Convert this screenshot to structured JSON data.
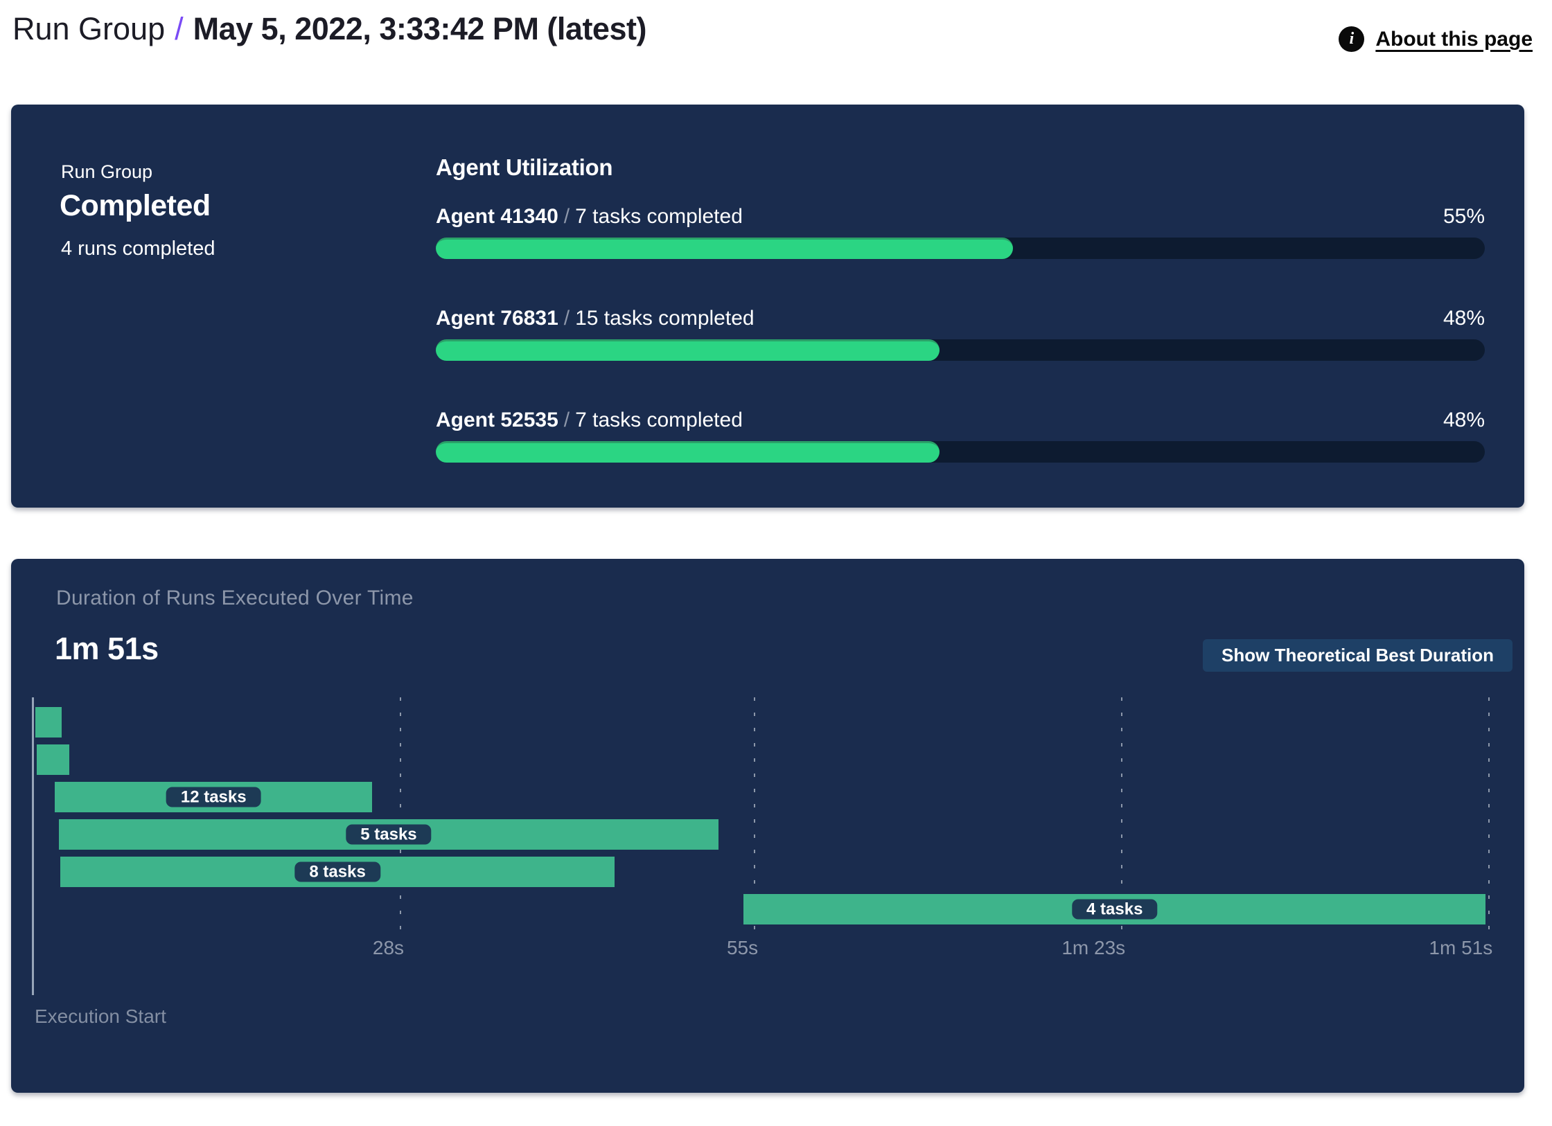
{
  "header": {
    "breadcrumb_root": "Run Group",
    "separator": "/",
    "title": "May 5, 2022, 3:33:42 PM (latest)",
    "about_link": "About this page",
    "info_icon_glyph": "i"
  },
  "summary": {
    "label": "Run Group",
    "status": "Completed",
    "detail": "4 runs completed"
  },
  "agent_utilization": {
    "title": "Agent Utilization",
    "separator": "/",
    "rows": [
      {
        "agent": "Agent 41340",
        "tasks_text": "7 tasks completed",
        "percent": 55,
        "percent_label": "55%"
      },
      {
        "agent": "Agent 76831",
        "tasks_text": "15 tasks completed",
        "percent": 48,
        "percent_label": "48%"
      },
      {
        "agent": "Agent 52535",
        "tasks_text": "7 tasks completed",
        "percent": 48,
        "percent_label": "48%"
      }
    ]
  },
  "duration_panel": {
    "button_label": "Show Theoretical Best Duration"
  },
  "chart_data": {
    "type": "gantt",
    "title": "Duration of Runs Executed Over Time",
    "total_label": "1m 51s",
    "x_unit": "seconds",
    "x_range": [
      0,
      111
    ],
    "x_ticks": [
      {
        "t": 28,
        "label": "28s"
      },
      {
        "t": 55,
        "label": "55s"
      },
      {
        "t": 83,
        "label": "1m 23s"
      },
      {
        "t": 111,
        "label": "1m 51s"
      }
    ],
    "x_axis_start_label": "Execution Start",
    "bars": [
      {
        "start": 0.2,
        "end": 2.2,
        "label": ""
      },
      {
        "start": 0.3,
        "end": 2.8,
        "label": ""
      },
      {
        "start": 1.7,
        "end": 25.9,
        "label": "12 tasks"
      },
      {
        "start": 2.0,
        "end": 52.3,
        "label": "5 tasks"
      },
      {
        "start": 2.1,
        "end": 44.4,
        "label": "8 tasks"
      },
      {
        "start": 54.2,
        "end": 110.8,
        "label": "4 tasks"
      }
    ],
    "colors": {
      "bar_green": "#3eb48b",
      "progress_green": "#2bd583",
      "progress_green_edge": "#2aa168",
      "track": "#0d1b30",
      "panel": "#1a2c4e",
      "label_pill": "#1d3a55",
      "accent_purple": "#7a4bf5",
      "muted_text": "#8d97aa"
    },
    "grid": true,
    "legend": false
  }
}
